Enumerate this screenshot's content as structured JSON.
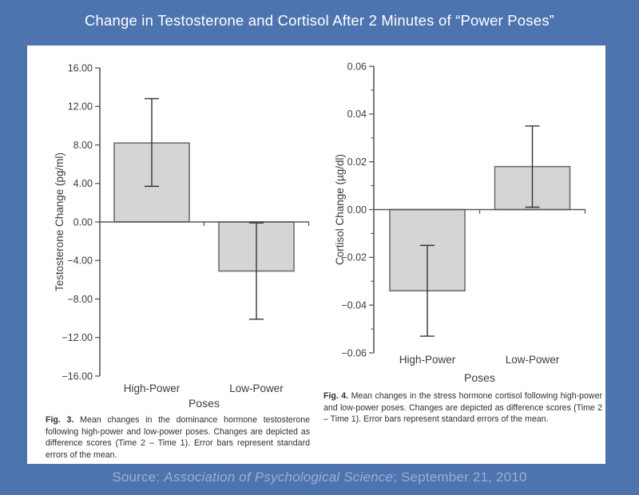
{
  "title": "Change in Testosterone and Cortisol After 2 Minutes of “Power Poses”",
  "figures": {
    "fig3": {
      "label": "Fig. 3.",
      "text": " Mean changes in the dominance hormone testosterone following high-power and low-power poses. Changes are depicted as difference scores (Time 2 – Time 1). Error bars represent standard errors of the mean."
    },
    "fig4": {
      "label": "Fig. 4.",
      "text": " Mean changes in the stress hormone cortisol following high-power and low-power poses. Changes are depicted as difference scores (Time 2 – Time 1). Error bars represent standard errors of the mean."
    }
  },
  "footer": {
    "prefix": "Source: ",
    "source": "Association of Psychological Science",
    "suffix": "; September 21, 2010"
  },
  "colors": {
    "background": "#4d74af",
    "panel": "#ffffff",
    "title_text": "#ffffff",
    "footer_text": "#9aaed4",
    "caption_text": "#2f2f2f",
    "axis": "#58595b",
    "text": "#3c3c3c",
    "bar_fill": "#d4d5d7",
    "bar_stroke": "#6e6e70",
    "error_bar": "#333333"
  },
  "chart_data": [
    {
      "type": "bar",
      "id": "testosterone",
      "categories": [
        "High-Power",
        "Low-Power"
      ],
      "values": [
        8.2,
        -5.1
      ],
      "error_low": [
        3.7,
        -10.1
      ],
      "error_high": [
        12.8,
        -0.1
      ],
      "xlabel": "Poses",
      "ylabel": "Testosterone Change (pg/ml)",
      "ylim": [
        -16,
        16
      ],
      "ytick_step": 4,
      "ytick_decimals": 2,
      "grid": false,
      "legend": "none",
      "error_bars": "standard errors of the mean"
    },
    {
      "type": "bar",
      "id": "cortisol",
      "categories": [
        "High-Power",
        "Low-Power"
      ],
      "values": [
        -0.034,
        0.018
      ],
      "error_low": [
        -0.053,
        0.001
      ],
      "error_high": [
        -0.015,
        0.035
      ],
      "xlabel": "Poses",
      "ylabel": "Cortisol Change (µg/dl)",
      "ylim": [
        -0.06,
        0.06
      ],
      "ytick_step": 0.02,
      "yminor_step": 0.01,
      "ytick_decimals": 2,
      "grid": false,
      "legend": "none",
      "error_bars": "standard errors of the mean"
    }
  ]
}
